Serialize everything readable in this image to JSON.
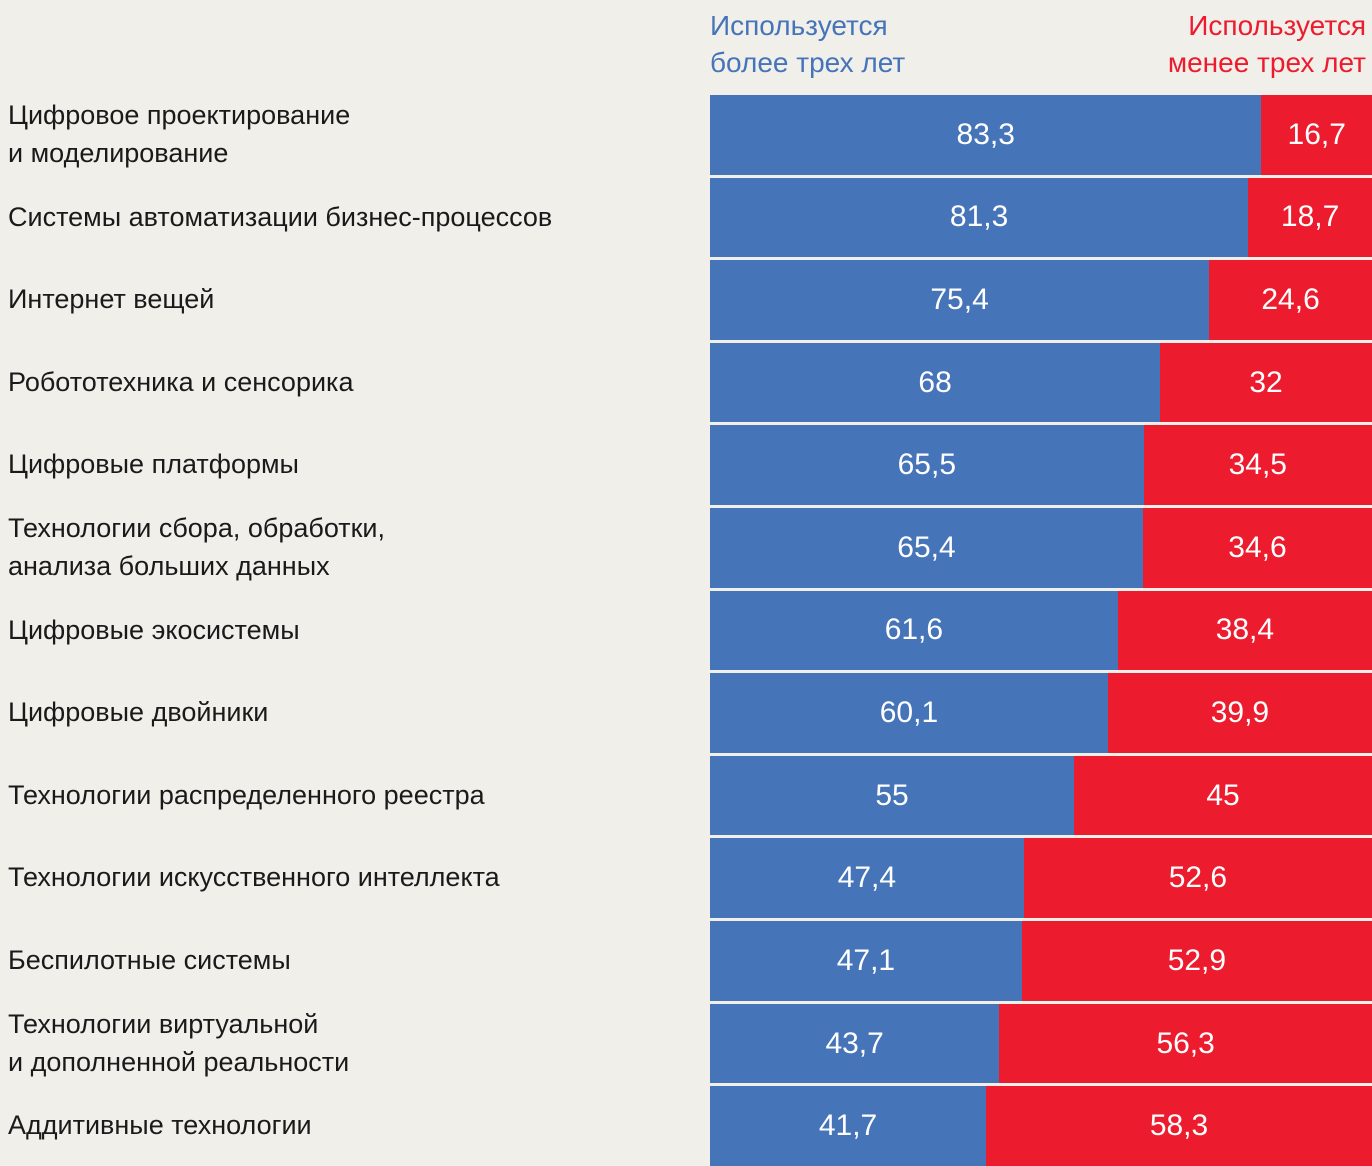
{
  "background": "#f0efea",
  "colors": {
    "blue": "#4674b9",
    "red": "#ed1b2e",
    "category_text": "#1a1a1a",
    "value_text": "#ffffff"
  },
  "legend": {
    "left": "Используется\nболее трех лет",
    "right": "Используется\nменее трех лет"
  },
  "chart_data": {
    "type": "bar",
    "orientation": "horizontal",
    "stacked": true,
    "unit": "percent",
    "xlim": [
      0,
      100
    ],
    "grid": false,
    "legend_position": "top",
    "categories": [
      "Цифровое проектирование\nи моделирование",
      "Системы автоматизации бизнес-процессов",
      "Интернет вещей",
      "Робототехника и сенсорика",
      "Цифровые платформы",
      "Технологии сбора, обработки,\nанализа больших данных",
      "Цифровые экосистемы",
      "Цифровые двойники",
      "Технологии распределенного реестра",
      "Технологии искусственного интеллекта",
      "Беспилотные системы",
      "Технологии виртуальной\nи дополненной реальности",
      "Аддитивные технологии"
    ],
    "series": [
      {
        "name": "Используется более трех лет",
        "color": "#4674b9",
        "values": [
          83.3,
          81.3,
          75.4,
          68,
          65.5,
          65.4,
          61.6,
          60.1,
          55,
          47.4,
          47.1,
          43.7,
          41.7
        ]
      },
      {
        "name": "Используется менее трех лет",
        "color": "#ed1b2e",
        "values": [
          16.7,
          18.7,
          24.6,
          32,
          34.5,
          34.6,
          38.4,
          39.9,
          45,
          52.6,
          52.9,
          56.3,
          58.3
        ]
      }
    ],
    "value_labels": [
      [
        "83,3",
        "16,7"
      ],
      [
        "81,3",
        "18,7"
      ],
      [
        "75,4",
        "24,6"
      ],
      [
        "68",
        "32"
      ],
      [
        "65,5",
        "34,5"
      ],
      [
        "65,4",
        "34,6"
      ],
      [
        "61,6",
        "38,4"
      ],
      [
        "60,1",
        "39,9"
      ],
      [
        "55",
        "45"
      ],
      [
        "47,4",
        "52,6"
      ],
      [
        "47,1",
        "52,9"
      ],
      [
        "43,7",
        "56,3"
      ],
      [
        "41,7",
        "58,3"
      ]
    ]
  }
}
